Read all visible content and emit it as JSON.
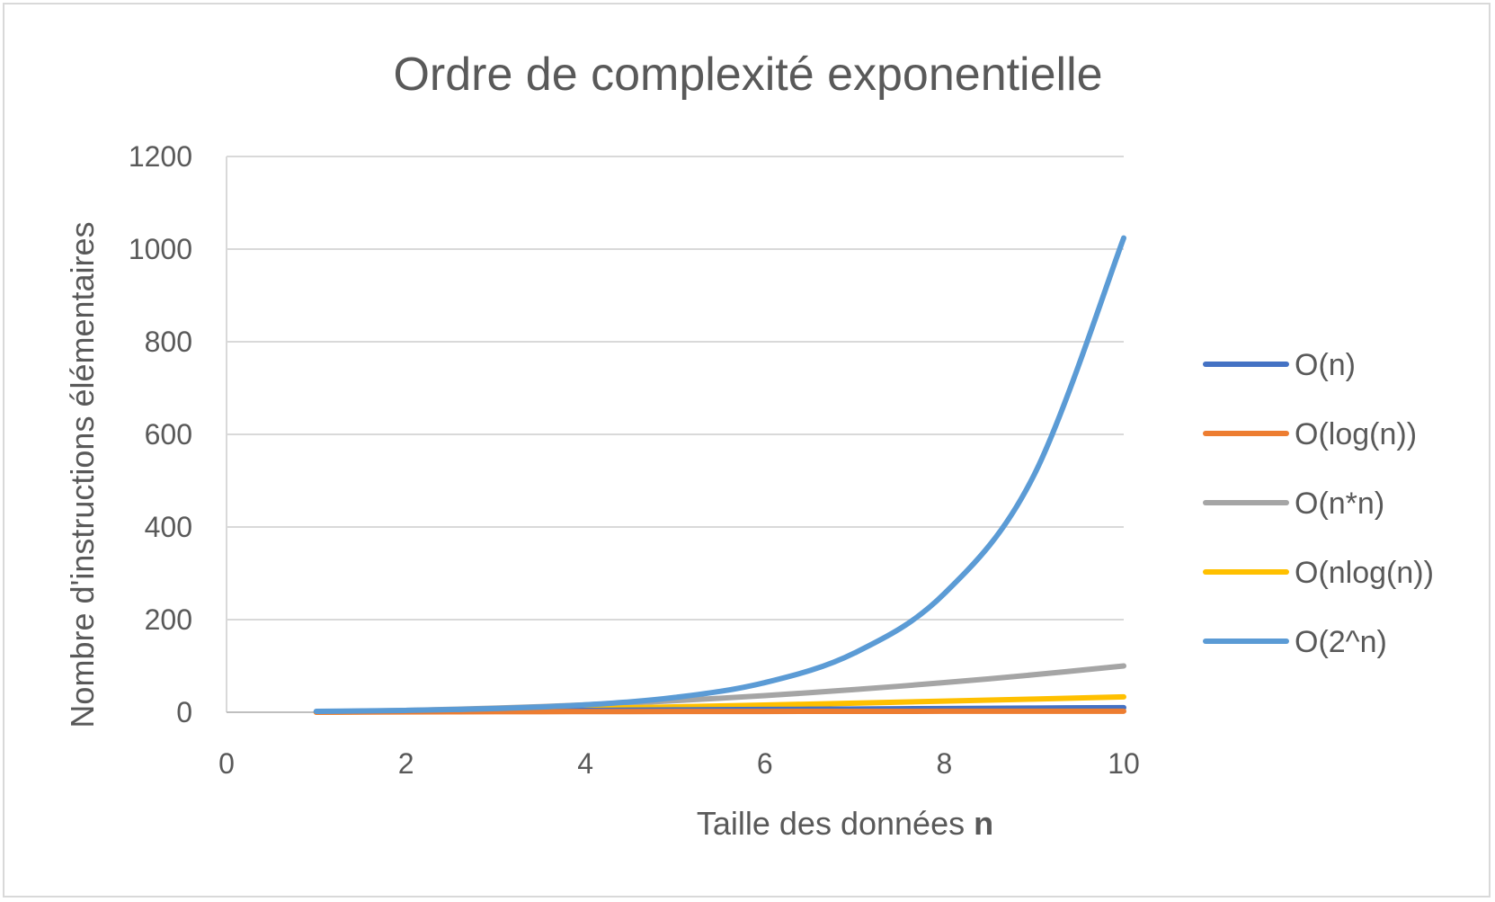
{
  "chart_data": {
    "type": "line",
    "title": "Ordre de complexité exponentielle",
    "xlabel": "Taille des données",
    "xlabel_bold": "n",
    "ylabel": "Nombre d'instructions élémentaires",
    "xlim": [
      0,
      10
    ],
    "ylim": [
      0,
      1200
    ],
    "xticks": [
      "0",
      "2",
      "4",
      "6",
      "8",
      "10"
    ],
    "yticks": [
      "0",
      "200",
      "400",
      "600",
      "800",
      "1000",
      "1200"
    ],
    "x": [
      1,
      2,
      3,
      4,
      5,
      6,
      7,
      8,
      9,
      10
    ],
    "grid": "horizontal",
    "legend_position": "right",
    "series": [
      {
        "name": "O(n)",
        "color": "#4472c4",
        "values": [
          1,
          2,
          3,
          4,
          5,
          6,
          7,
          8,
          9,
          10
        ]
      },
      {
        "name": "O(log(n))",
        "color": "#ed7d31",
        "values": [
          0,
          0.69,
          1.1,
          1.39,
          1.61,
          1.79,
          1.95,
          2.08,
          2.2,
          2.3
        ]
      },
      {
        "name": "O(n*n)",
        "color": "#a5a5a5",
        "values": [
          1,
          4,
          9,
          16,
          25,
          36,
          49,
          64,
          81,
          100
        ]
      },
      {
        "name": "O(nlog(n))",
        "color": "#ffc000",
        "values": [
          0,
          2,
          4.8,
          8,
          11.6,
          15.5,
          19.7,
          24,
          28.5,
          33.2
        ]
      },
      {
        "name": "O(2^n)",
        "color": "#5b9bd5",
        "values": [
          2,
          4,
          8,
          16,
          32,
          64,
          128,
          256,
          512,
          1024
        ]
      }
    ]
  }
}
